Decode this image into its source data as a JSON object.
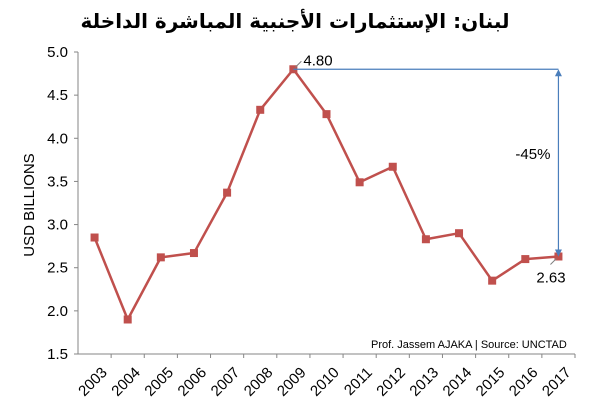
{
  "chart_data": {
    "type": "line",
    "title": "لبنان: الإستثمارات الأجنبية المباشرة الداخلة",
    "ylabel": "USD BILLIONS",
    "xlabel": "",
    "ylim": [
      1.5,
      5.0
    ],
    "yticks": [
      "1.5",
      "2.0",
      "2.5",
      "3.0",
      "3.5",
      "4.0",
      "4.5",
      "5.0"
    ],
    "categories": [
      "2003",
      "2004",
      "2005",
      "2006",
      "2007",
      "2008",
      "2009",
      "2010",
      "2011",
      "2012",
      "2013",
      "2014",
      "2015",
      "2016",
      "2017"
    ],
    "series": [
      {
        "values": [
          2.85,
          1.9,
          2.62,
          2.67,
          3.37,
          4.33,
          4.8,
          4.28,
          3.49,
          3.67,
          2.83,
          2.9,
          2.35,
          2.6,
          2.63
        ]
      }
    ],
    "line_color": "#c0504d",
    "marker_color": "#c0504d",
    "arrow_color": "#4a7ebb",
    "grid": false,
    "annotations": {
      "peak_label": "4.80",
      "last_label": "2.63",
      "change_label": "-45%"
    },
    "source": "Prof. Jassem AJAKA | Source: UNCTAD"
  }
}
